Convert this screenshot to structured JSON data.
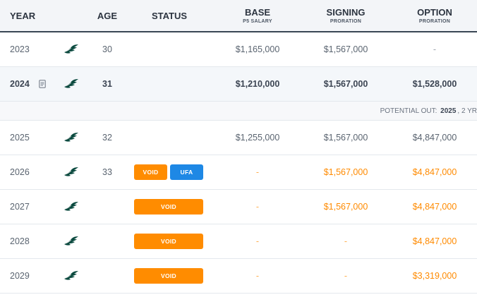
{
  "header": {
    "year": "YEAR",
    "age": "AGE",
    "status": "STATUS",
    "base": "BASE",
    "base_sub": "P5 SALARY",
    "signing": "SIGNING",
    "signing_sub": "PRORATION",
    "option": "OPTION",
    "option_sub": "PRORATION"
  },
  "rows": [
    {
      "year": "2023",
      "age": "30",
      "base": "$1,165,000",
      "signing": "$1,567,000",
      "option": "-"
    },
    {
      "year": "2024",
      "age": "31",
      "base": "$1,210,000",
      "signing": "$1,567,000",
      "option": "$1,528,000"
    },
    {
      "year": "2025",
      "age": "32",
      "base": "$1,255,000",
      "signing": "$1,567,000",
      "option": "$4,847,000"
    },
    {
      "year": "2026",
      "age": "33",
      "status1": "VOID",
      "status2": "UFA",
      "base": "-",
      "signing": "$1,567,000",
      "option": "$4,847,000"
    },
    {
      "year": "2027",
      "age": "",
      "status1": "VOID",
      "base": "-",
      "signing": "$1,567,000",
      "option": "$4,847,000"
    },
    {
      "year": "2028",
      "age": "",
      "status1": "VOID",
      "base": "-",
      "signing": "-",
      "option": "$4,847,000"
    },
    {
      "year": "2029",
      "age": "",
      "status1": "VOID",
      "base": "-",
      "signing": "-",
      "option": "$3,319,000"
    }
  ],
  "note": {
    "prefix": "POTENTIAL OUT:",
    "year": "2025",
    "suffix": ", 2 YR"
  },
  "icons": {
    "team": "eagle-logo-icon",
    "doc": "document-icon"
  },
  "colors": {
    "void": "#ff8c00",
    "ufa": "#1e88e5",
    "future_text": "#ff8a00"
  }
}
